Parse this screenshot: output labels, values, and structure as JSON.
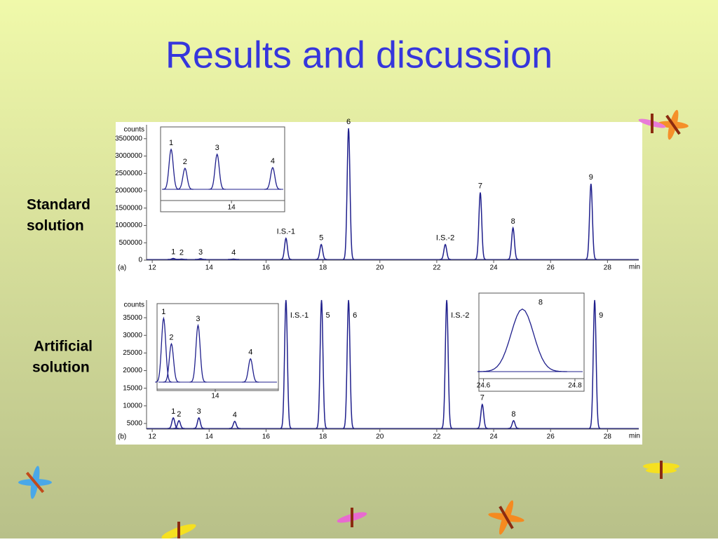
{
  "title": "Results and discussion",
  "side_labels": [
    [
      "Standard",
      "solution"
    ],
    [
      "Artificial",
      "solution"
    ]
  ],
  "chart_data": [
    {
      "type": "line",
      "panel_label": "(a)",
      "ylabel": "counts",
      "xlabel": "min",
      "color": "#1f1f8c",
      "xlim": [
        11.8,
        29.1
      ],
      "xticks": [
        12,
        14,
        16,
        18,
        20,
        22,
        24,
        26,
        28
      ],
      "ylim": [
        0,
        3900000
      ],
      "yticks": [
        0,
        500000,
        1000000,
        1500000,
        2000000,
        2500000,
        3000000,
        3500000
      ],
      "peaks": {
        "x": [
          12.74,
          13.03,
          13.7,
          14.86,
          16.7,
          17.94,
          18.9,
          22.3,
          23.53,
          24.68,
          27.42
        ],
        "values": [
          50000,
          30000,
          40000,
          30000,
          630000,
          450000,
          3800000,
          450000,
          1950000,
          930000,
          2200000
        ],
        "labels": [
          "1",
          "2",
          "3",
          "4",
          "I.S.-1",
          "5",
          "6",
          "I.S.-2",
          "7",
          "8",
          "9"
        ]
      },
      "insets": [
        {
          "xlim": [
            12.52,
            15.11
          ],
          "xticks": [
            14
          ],
          "ylim": [
            0,
            70
          ],
          "x": [
            12.74,
            13.03,
            13.7,
            14.86
          ],
          "values": [
            57,
            30,
            50,
            31
          ],
          "labels": [
            "1",
            "2",
            "3",
            "4"
          ]
        }
      ]
    },
    {
      "type": "line",
      "panel_label": "(b)",
      "ylabel": "counts",
      "xlabel": "min",
      "color": "#1f1f8c",
      "xlim": [
        11.8,
        29.1
      ],
      "xticks": [
        12,
        14,
        16,
        18,
        20,
        22,
        24,
        26,
        28
      ],
      "ylim": [
        3400,
        40000
      ],
      "yticks": [
        5000,
        10000,
        15000,
        20000,
        25000,
        30000,
        35000
      ],
      "peaks": {
        "x": [
          12.74,
          12.94,
          13.64,
          14.9,
          16.7,
          17.95,
          18.9,
          22.35,
          23.6,
          24.7,
          27.55
        ],
        "values": [
          6600,
          5800,
          6600,
          5600,
          40000,
          40000,
          40000,
          40000,
          10400,
          5800,
          40000
        ],
        "labels": [
          "1",
          "2",
          "3",
          "4",
          "I.S.-1",
          "5",
          "6",
          "I.S.-2",
          "7",
          "8",
          "9"
        ]
      },
      "insets": [
        {
          "xlim": [
            12.58,
            15.54
          ],
          "xticks": [
            14
          ],
          "ylim": [
            14000,
            38600
          ],
          "x": [
            12.74,
            12.93,
            13.58,
            14.86
          ],
          "values": [
            34000,
            26000,
            31800,
            21300
          ],
          "labels": [
            "1",
            "2",
            "3",
            "4"
          ]
        },
        {
          "xlim": [
            24.59,
            24.82
          ],
          "xticks": [
            24.6,
            24.8
          ],
          "ylim": [
            0,
            100
          ],
          "x": [
            24.685
          ],
          "values": [
            85
          ],
          "labels": [
            "8"
          ]
        }
      ]
    }
  ]
}
